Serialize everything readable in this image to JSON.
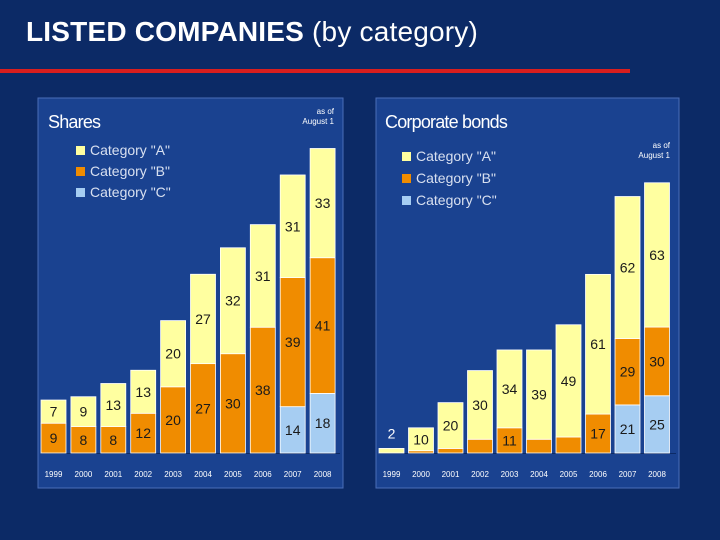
{
  "slide": {
    "title_bold": "LISTED COMPANIES",
    "title_rest": " (by category)"
  },
  "colors": {
    "background": "#0c2a66",
    "panel": "#1a4290",
    "rule": "#d81e1e",
    "category_a": "#ffffa0",
    "category_b": "#f08c00",
    "category_c": "#a6cdf2"
  },
  "chart_data": [
    {
      "type": "bar",
      "stacked": true,
      "title": "Shares",
      "note": [
        "as of",
        "August 1"
      ],
      "categories": [
        "1999",
        "2000",
        "2001",
        "2002",
        "2003",
        "2004",
        "2005",
        "2006",
        "2007",
        "2008"
      ],
      "legend": [
        "Category \"A\"",
        "Category \"B\"",
        "Category \"C\""
      ],
      "series": [
        {
          "name": "Category \"C\"",
          "values": [
            0,
            0,
            0,
            0,
            0,
            0,
            0,
            0,
            14,
            18
          ]
        },
        {
          "name": "Category \"B\"",
          "values": [
            9,
            8,
            8,
            12,
            20,
            27,
            30,
            38,
            39,
            41
          ]
        },
        {
          "name": "Category \"A\"",
          "values": [
            7,
            9,
            13,
            13,
            20,
            27,
            32,
            31,
            31,
            33
          ]
        }
      ],
      "ylim": [
        0,
        95
      ],
      "grid": false,
      "legend_position": "top-left"
    },
    {
      "type": "bar",
      "stacked": true,
      "title": "Corporate bonds",
      "note": [
        "as of",
        "August 1"
      ],
      "categories": [
        "1999",
        "2000",
        "2001",
        "2002",
        "2003",
        "2004",
        "2005",
        "2006",
        "2007",
        "2008"
      ],
      "legend": [
        "Category \"A\"",
        "Category \"B\"",
        "Category \"C\""
      ],
      "series": [
        {
          "name": "Category \"C\"",
          "values": [
            0,
            0,
            0,
            0,
            0,
            0,
            0,
            0,
            21,
            25
          ]
        },
        {
          "name": "Category \"B\"",
          "values": [
            0,
            1,
            2,
            6,
            11,
            6,
            7,
            17,
            29,
            30
          ]
        },
        {
          "name": "Category \"A\"",
          "values": [
            2,
            10,
            20,
            30,
            34,
            39,
            49,
            61,
            62,
            63
          ]
        }
      ],
      "ylim": [
        0,
        128
      ],
      "grid": false,
      "legend_position": "top-left"
    }
  ]
}
